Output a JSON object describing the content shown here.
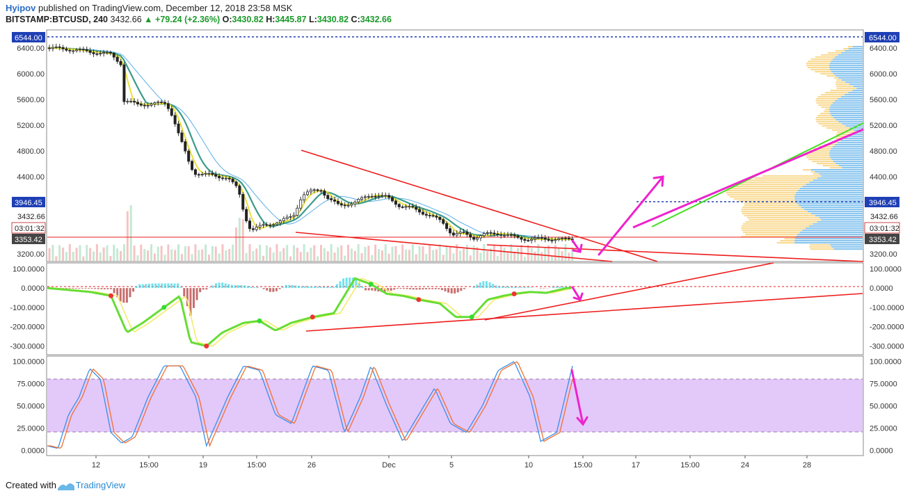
{
  "header": {
    "author": "Hyipov",
    "published": "published on TradingView.com, December 12, 2018 23:58 MSK",
    "symbol": "BITSTAMP:BTCUSD, 240",
    "last": "3432.66",
    "change": "▲ +79.24 (+2.36%)",
    "o_label": "O:",
    "o": "3430.82",
    "h_label": "H:",
    "h": "3445.87",
    "l_label": "L:",
    "l": "3430.82",
    "c_label": "C:",
    "c": "3432.66"
  },
  "footer": {
    "created_with": "Created with",
    "brand": "TradingView"
  },
  "colors": {
    "price_tag_blue": "#1e3fb5",
    "current_tag_dark": "#444444",
    "trendline_red": "#ee1c1c",
    "arrow_magenta": "#ee22cc",
    "trend_green": "#44dd22",
    "stoch_band": "#e3c8fa"
  },
  "chart_data": [
    {
      "type": "candlestick",
      "panel": "price",
      "y_ticks": [
        "6400.00",
        "6000.00",
        "5600.00",
        "5200.00",
        "4800.00",
        "4400.00",
        "3200.00"
      ],
      "y_tick_values": [
        6400,
        6000,
        5600,
        5200,
        4800,
        4400,
        3200
      ],
      "ylim": [
        3080,
        6680
      ],
      "level_lines": [
        {
          "label": "6544.00",
          "value": 6544,
          "style": "dotted-blue"
        },
        {
          "label": "3946.45",
          "value": 3946.45,
          "style": "dotted-blue"
        },
        {
          "label": "3353.42",
          "value": 3353.42,
          "style": "solid-red"
        }
      ],
      "current_price": {
        "label": "3432.66",
        "value": 3432.66,
        "countdown": "03:01:32"
      },
      "x_ticks": [
        "12",
        "15:00",
        "19",
        "15:00",
        "26",
        "Dec",
        "5",
        "10",
        "15:00",
        "17",
        "15:00",
        "24",
        "28"
      ],
      "close_path": [
        [
          0,
          6400
        ],
        [
          20,
          6380
        ],
        [
          45,
          6330
        ],
        [
          60,
          6300
        ],
        [
          70,
          6150
        ],
        [
          72,
          5580
        ],
        [
          85,
          5520
        ],
        [
          100,
          5530
        ],
        [
          112,
          5540
        ],
        [
          118,
          5350
        ],
        [
          125,
          5000
        ],
        [
          135,
          4550
        ],
        [
          140,
          4450
        ],
        [
          155,
          4420
        ],
        [
          170,
          4380
        ],
        [
          180,
          4200
        ],
        [
          186,
          3800
        ],
        [
          192,
          3560
        ],
        [
          205,
          3650
        ],
        [
          220,
          3700
        ],
        [
          232,
          3800
        ],
        [
          240,
          4100
        ],
        [
          250,
          4180
        ],
        [
          258,
          4200
        ],
        [
          265,
          4050
        ],
        [
          275,
          3950
        ],
        [
          290,
          4000
        ],
        [
          305,
          4120
        ],
        [
          320,
          4080
        ],
        [
          332,
          3950
        ],
        [
          345,
          3900
        ],
        [
          360,
          3800
        ],
        [
          372,
          3700
        ],
        [
          382,
          3500
        ],
        [
          392,
          3520
        ],
        [
          402,
          3450
        ],
        [
          412,
          3500
        ],
        [
          425,
          3520
        ],
        [
          440,
          3460
        ],
        [
          455,
          3420
        ],
        [
          470,
          3435
        ],
        [
          485,
          3420
        ],
        [
          495,
          3433
        ]
      ],
      "volume_note": "volume bars along bottom of price panel"
    },
    {
      "type": "line",
      "panel": "oscillator",
      "y_ticks": [
        "100.0000",
        "0.0000",
        "-100.0000",
        "-200.0000",
        "-300.0000"
      ],
      "y_tick_values": [
        100,
        0,
        -100,
        -200,
        -300
      ],
      "ylim": [
        -345,
        130
      ],
      "series": [
        {
          "values": [
            [
              0,
              0
            ],
            [
              20,
              -10
            ],
            [
              40,
              -20
            ],
            [
              60,
              -40
            ],
            [
              75,
              -230
            ],
            [
              90,
              -180
            ],
            [
              110,
              -100
            ],
            [
              125,
              -40
            ],
            [
              135,
              -280
            ],
            [
              150,
              -300
            ],
            [
              165,
              -230
            ],
            [
              185,
              -180
            ],
            [
              200,
              -170
            ],
            [
              215,
              -220
            ],
            [
              230,
              -180
            ],
            [
              250,
              -150
            ],
            [
              270,
              -130
            ],
            [
              290,
              50
            ],
            [
              305,
              20
            ],
            [
              320,
              -30
            ],
            [
              335,
              -40
            ],
            [
              350,
              -60
            ],
            [
              370,
              -80
            ],
            [
              385,
              -150
            ],
            [
              400,
              -150
            ],
            [
              415,
              -60
            ],
            [
              430,
              -40
            ],
            [
              440,
              -30
            ],
            [
              455,
              -20
            ],
            [
              470,
              -25
            ],
            [
              490,
              0
            ]
          ]
        }
      ]
    },
    {
      "type": "line",
      "panel": "stochastic",
      "y_ticks": [
        "100.0000",
        "75.0000",
        "50.0000",
        "25.0000",
        "0.0000"
      ],
      "y_tick_values": [
        100,
        75,
        50,
        25,
        0
      ],
      "ylim": [
        -6,
        106
      ],
      "band": [
        20,
        80
      ],
      "series": [
        {
          "values": [
            [
              0,
              5
            ],
            [
              10,
              2
            ],
            [
              20,
              40
            ],
            [
              30,
              60
            ],
            [
              40,
              92
            ],
            [
              50,
              80
            ],
            [
              60,
              20
            ],
            [
              70,
              8
            ],
            [
              80,
              15
            ],
            [
              95,
              60
            ],
            [
              110,
              95
            ],
            [
              125,
              95
            ],
            [
              140,
              60
            ],
            [
              150,
              5
            ],
            [
              170,
              60
            ],
            [
              185,
              95
            ],
            [
              200,
              90
            ],
            [
              215,
              40
            ],
            [
              230,
              30
            ],
            [
              250,
              95
            ],
            [
              265,
              90
            ],
            [
              280,
              20
            ],
            [
              295,
              60
            ],
            [
              305,
              95
            ],
            [
              320,
              50
            ],
            [
              335,
              10
            ],
            [
              350,
              40
            ],
            [
              365,
              70
            ],
            [
              380,
              30
            ],
            [
              395,
              20
            ],
            [
              410,
              50
            ],
            [
              425,
              90
            ],
            [
              440,
              100
            ],
            [
              455,
              60
            ],
            [
              465,
              10
            ],
            [
              480,
              20
            ],
            [
              495,
              95
            ]
          ]
        }
      ]
    }
  ]
}
